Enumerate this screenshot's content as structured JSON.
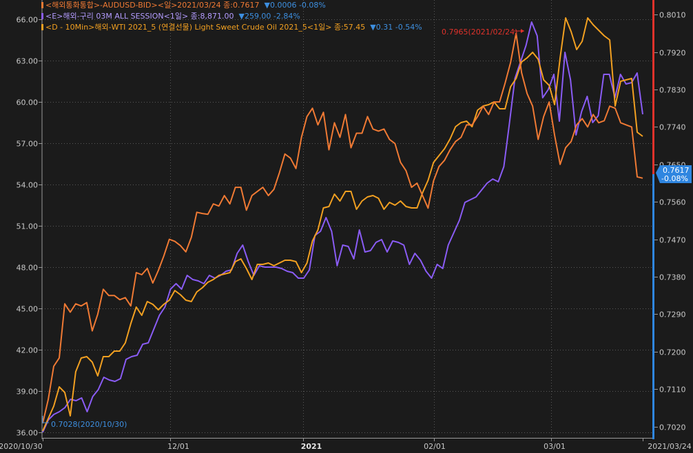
{
  "legend": {
    "aud": {
      "text": "<해외통화통합>-AUDUSD-BID><일>2021/03/24 종:0.7617",
      "change": "▼0.0006 -0.08%"
    },
    "copper": {
      "text": "<E>해외-구리 03M ALL SESSION<1일> 종:8,871.00",
      "change": "▼259.00 -2.84%"
    },
    "wti": {
      "text": "<D - 10Min>해외-WTI 2021_5 (연결선물) Light Sweet Crude Oil 2021_5<1일> 종:57.45",
      "change": "▼0.31 -0.54%"
    }
  },
  "annotations": {
    "max_label": "0.7965(2021/02/24)",
    "min_label": "0.7028(2020/10/30)",
    "last_price": "0.7617",
    "last_change": "-0.08%"
  },
  "colors": {
    "background": "#1b1b1b",
    "grid": "#5a5a5a",
    "axis_text": "#c8c8c8",
    "aud": "#f07a34",
    "copper": "#8a5cf5",
    "wti": "#f2a021",
    "right_axis_top": "#e0322b",
    "right_axis_bottom": "#2f86e0",
    "max_label": "#e0322b",
    "min_label": "#3d8fe0",
    "change_down": "#3d8fe0"
  },
  "chart_data": {
    "type": "line",
    "x_labels": [
      "2020/10/30",
      "12/01",
      "2021",
      "02/01",
      "03/01",
      "2021/03/24"
    ],
    "left_axis": {
      "ticks": [
        "36.00",
        "39.00",
        "42.00",
        "45.00",
        "48.00",
        "51.00",
        "54.00",
        "57.00",
        "60.00",
        "63.00",
        "66.00"
      ],
      "ylim": [
        35.6,
        67.4
      ]
    },
    "right_axis": {
      "ticks": [
        "0.7020",
        "0.7110",
        "0.7200",
        "0.7290",
        "0.7380",
        "0.7470",
        "0.7560",
        "0.7650",
        "0.7740",
        "0.7830",
        "0.7920",
        "0.8010"
      ],
      "ylim": [
        0.6993,
        0.8045
      ]
    },
    "grid": true,
    "series": [
      {
        "name": "AUDUSD-BID",
        "axis": "right",
        "color": "#f07a34",
        "values": [
          0.7028,
          0.7085,
          0.7165,
          0.7185,
          0.7315,
          0.7295,
          0.7315,
          0.731,
          0.7318,
          0.725,
          0.729,
          0.735,
          0.7335,
          0.7335,
          0.7325,
          0.733,
          0.731,
          0.739,
          0.7385,
          0.74,
          0.7365,
          0.7395,
          0.743,
          0.747,
          0.7465,
          0.7455,
          0.744,
          0.7475,
          0.7535,
          0.7532,
          0.753,
          0.7555,
          0.755,
          0.7575,
          0.7555,
          0.7595,
          0.7595,
          0.754,
          0.7575,
          0.7585,
          0.7595,
          0.7575,
          0.759,
          0.763,
          0.7675,
          0.7665,
          0.764,
          0.7715,
          0.7765,
          0.7785,
          0.7745,
          0.7775,
          0.7685,
          0.775,
          0.7715,
          0.777,
          0.769,
          0.7725,
          0.7725,
          0.7765,
          0.7735,
          0.773,
          0.7735,
          0.771,
          0.77,
          0.7655,
          0.7635,
          0.7595,
          0.7605,
          0.7575,
          0.7545,
          0.761,
          0.7645,
          0.766,
          0.7685,
          0.7705,
          0.7715,
          0.7745,
          0.7745,
          0.7765,
          0.779,
          0.777,
          0.78,
          0.78,
          0.7845,
          0.7895,
          0.7965,
          0.787,
          0.782,
          0.779,
          0.771,
          0.7765,
          0.78,
          0.772,
          0.765,
          0.769,
          0.7705,
          0.7745,
          0.776,
          0.774,
          0.777,
          0.775,
          0.7755,
          0.779,
          0.7785,
          0.775,
          0.7745,
          0.774,
          0.762,
          0.7617
        ]
      },
      {
        "name": "구리 03M",
        "axis": "left",
        "color": "#8a5cf5",
        "values": [
          36.0,
          36.9,
          37.3,
          37.5,
          37.8,
          38.4,
          38.3,
          38.5,
          37.5,
          38.6,
          39.1,
          40.0,
          39.8,
          39.7,
          39.9,
          41.3,
          41.5,
          41.6,
          42.4,
          42.5,
          43.5,
          44.5,
          45.1,
          46.4,
          46.8,
          46.4,
          47.4,
          47.1,
          47.0,
          46.8,
          47.4,
          47.2,
          47.4,
          47.7,
          47.8,
          49.0,
          49.6,
          48.4,
          47.4,
          48.1,
          48.0,
          48.0,
          48.0,
          47.9,
          47.7,
          47.6,
          47.2,
          47.2,
          47.8,
          50.3,
          50.6,
          51.6,
          50.6,
          48.1,
          49.6,
          49.5,
          48.6,
          50.7,
          49.1,
          49.2,
          49.8,
          50.0,
          49.1,
          49.9,
          49.8,
          49.6,
          48.2,
          49.0,
          48.5,
          47.7,
          47.2,
          48.2,
          47.9,
          49.6,
          50.5,
          51.4,
          52.7,
          52.9,
          53.1,
          53.6,
          54.1,
          54.4,
          54.2,
          55.3,
          58.4,
          61.7,
          62.9,
          64.1,
          65.8,
          64.8,
          60.3,
          60.9,
          62.0,
          58.6,
          63.6,
          61.6,
          57.6,
          59.3,
          60.4,
          58.5,
          59.0,
          62.0,
          62.0,
          60.3,
          62.0,
          61.3,
          61.4,
          62.1,
          59.1
        ]
      },
      {
        "name": "WTI 2021_5",
        "axis": "left",
        "color": "#f2a021",
        "values": [
          36.1,
          37.0,
          37.9,
          39.3,
          38.9,
          37.2,
          40.4,
          41.4,
          41.5,
          41.1,
          40.1,
          41.5,
          41.5,
          41.9,
          41.9,
          42.5,
          43.9,
          45.1,
          44.5,
          45.5,
          45.3,
          44.9,
          45.3,
          45.6,
          46.3,
          46.0,
          45.6,
          45.5,
          46.2,
          46.5,
          46.9,
          47.1,
          47.4,
          47.5,
          47.6,
          48.4,
          48.6,
          47.9,
          47.1,
          48.2,
          48.2,
          48.3,
          48.1,
          48.3,
          48.5,
          48.5,
          48.4,
          47.6,
          48.3,
          49.9,
          50.7,
          52.3,
          52.4,
          53.3,
          52.8,
          53.5,
          53.5,
          52.2,
          52.8,
          53.1,
          53.2,
          53.0,
          52.2,
          52.7,
          52.5,
          52.8,
          52.4,
          52.3,
          52.3,
          53.4,
          54.3,
          55.6,
          56.1,
          56.6,
          57.3,
          58.2,
          58.5,
          58.6,
          58.2,
          59.4,
          59.7,
          59.8,
          60.0,
          59.5,
          59.5,
          61.1,
          61.7,
          62.9,
          63.2,
          63.6,
          63.1,
          61.6,
          61.2,
          59.8,
          63.2,
          66.1,
          65.1,
          63.8,
          64.4,
          66.1,
          65.6,
          65.2,
          64.8,
          64.5,
          59.7,
          61.5,
          61.6,
          61.7,
          57.8,
          57.5
        ]
      }
    ]
  }
}
